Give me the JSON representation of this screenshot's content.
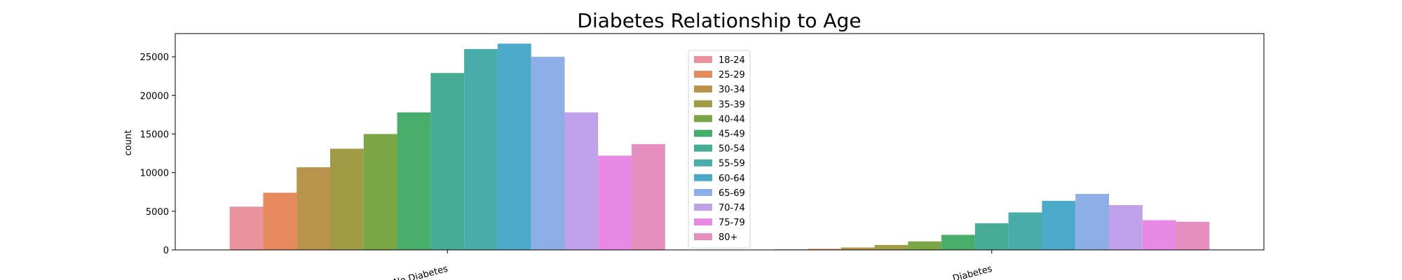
{
  "chart_data": {
    "type": "bar",
    "title": "Diabetes Relationship to Age",
    "xlabel": "",
    "ylabel": "count",
    "ylim": [
      0,
      28000
    ],
    "yticks": [
      0,
      5000,
      10000,
      15000,
      20000,
      25000
    ],
    "categories": [
      "No Diabetes",
      "Diabetes"
    ],
    "legend_position": "upper-center",
    "grid": false,
    "series": [
      {
        "name": "18-24",
        "color": "#e8939e",
        "values": [
          5600,
          80
        ]
      },
      {
        "name": "25-29",
        "color": "#e58a5c",
        "values": [
          7400,
          140
        ]
      },
      {
        "name": "30-34",
        "color": "#b9924b",
        "values": [
          10700,
          310
        ]
      },
      {
        "name": "35-39",
        "color": "#a09b45",
        "values": [
          13100,
          630
        ]
      },
      {
        "name": "40-44",
        "color": "#7ba645",
        "values": [
          15000,
          1100
        ]
      },
      {
        "name": "45-49",
        "color": "#46ad6a",
        "values": [
          17800,
          1950
        ]
      },
      {
        "name": "50-54",
        "color": "#47ac94",
        "values": [
          22900,
          3450
        ]
      },
      {
        "name": "55-59",
        "color": "#48aca9",
        "values": [
          26000,
          4850
        ]
      },
      {
        "name": "60-64",
        "color": "#4ba9ca",
        "values": [
          26700,
          6350
        ]
      },
      {
        "name": "65-69",
        "color": "#8eaee7",
        "values": [
          25000,
          7250
        ]
      },
      {
        "name": "70-74",
        "color": "#bfa2ea",
        "values": [
          17800,
          5800
        ]
      },
      {
        "name": "75-79",
        "color": "#e889e6",
        "values": [
          12200,
          3850
        ]
      },
      {
        "name": "80+",
        "color": "#e68fbe",
        "values": [
          13700,
          3650
        ]
      }
    ]
  }
}
